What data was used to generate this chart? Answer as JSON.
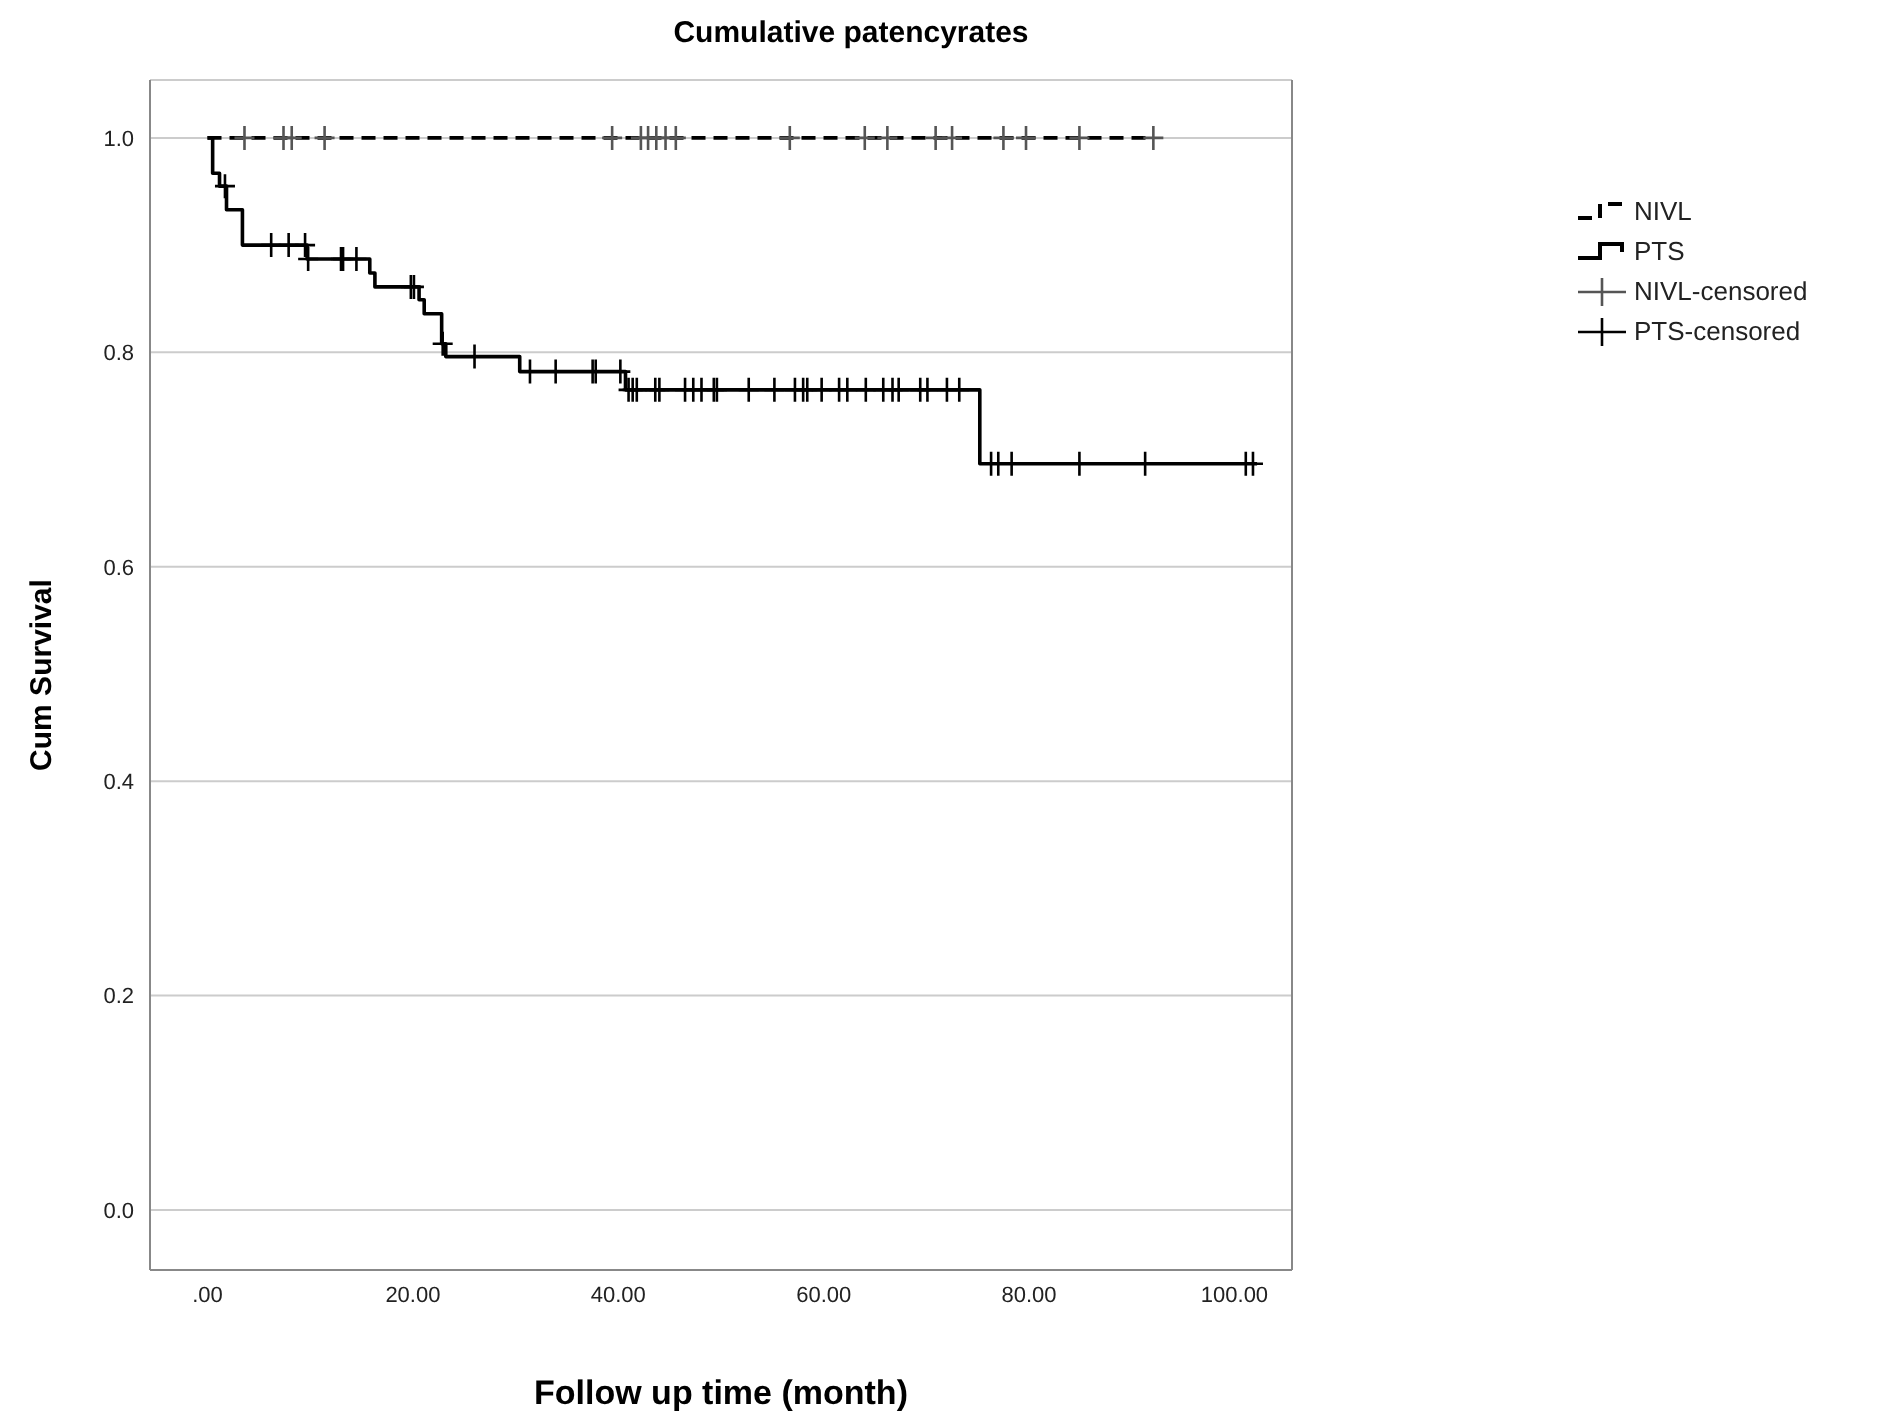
{
  "chart_data": {
    "type": "step",
    "title": "Cumulative patencyrates",
    "xlabel": "Follow up time (month)",
    "ylabel": "Cum Survival",
    "xlim": [
      -5.6,
      105.6
    ],
    "ylim": [
      -0.056,
      1.054
    ],
    "xticks": [
      {
        "value": 0,
        "label": ".00"
      },
      {
        "value": 20,
        "label": "20.00"
      },
      {
        "value": 40,
        "label": "40.00"
      },
      {
        "value": 60,
        "label": "60.00"
      },
      {
        "value": 80,
        "label": "80.00"
      },
      {
        "value": 100,
        "label": "100.00"
      }
    ],
    "yticks": [
      {
        "value": 0,
        "label": "0.0"
      },
      {
        "value": 0.2,
        "label": "0.2"
      },
      {
        "value": 0.4,
        "label": "0.4"
      },
      {
        "value": 0.6,
        "label": "0.6"
      },
      {
        "value": 0.8,
        "label": "0.8"
      },
      {
        "value": 1,
        "label": "1.0"
      }
    ],
    "grid": "y",
    "legend": "top right",
    "series": [
      {
        "name": "NIVL",
        "color": "#000000",
        "line_style": "dashed",
        "marker": "none",
        "x": [
          0,
          92.1
        ],
        "values": [
          1,
          1
        ]
      },
      {
        "name": "PTS",
        "color": "#000000",
        "line_style": "solid",
        "marker": "none",
        "x": [
          0,
          0.5,
          1.17,
          1.85,
          3.4,
          9.7,
          15.8,
          16.3,
          20.6,
          21.1,
          22.8,
          23.2,
          30.4,
          40.7,
          75.2,
          102.2
        ],
        "values": [
          1,
          0.967,
          0.955,
          0.933,
          0.9,
          0.887,
          0.874,
          0.861,
          0.849,
          0.836,
          0.808,
          0.796,
          0.782,
          0.765,
          0.696,
          0.696
        ]
      },
      {
        "name": "NIVL-censored",
        "type": "scatter",
        "color": "#555555",
        "marker": "cross",
        "x": [
          3.6,
          7.4,
          8.2,
          11.4,
          39.4,
          42.2,
          42.9,
          43.7,
          44.6,
          45.6,
          56.7,
          64.0,
          66.2,
          70.9,
          72.5,
          77.5,
          79.7,
          84.9,
          92.1
        ],
        "values": [
          1,
          1,
          1,
          1,
          1,
          1,
          1,
          1,
          1,
          1,
          1,
          1,
          1,
          1,
          1,
          1,
          1,
          1,
          1
        ]
      },
      {
        "name": "PTS-censored",
        "type": "scatter",
        "color": "#000000",
        "marker": "cross",
        "x": [
          1.7,
          6.2,
          7.9,
          9.5,
          9.8,
          13.0,
          13.2,
          14.5,
          19.8,
          20.1,
          22.9,
          26.0,
          31.4,
          33.9,
          37.5,
          37.8,
          40.2,
          41.0,
          41.4,
          41.8,
          43.6,
          44.0,
          46.5,
          47.3,
          48.1,
          49.3,
          49.6,
          52.7,
          55.2,
          57.2,
          58.0,
          58.4,
          59.8,
          61.5,
          62.3,
          64.1,
          65.8,
          66.7,
          67.3,
          69.4,
          70.1,
          72.0,
          73.2,
          76.3,
          77.0,
          78.3,
          84.9,
          91.3,
          101.1,
          101.8
        ],
        "values": [
          0.955,
          0.9,
          0.9,
          0.9,
          0.887,
          0.887,
          0.887,
          0.887,
          0.861,
          0.861,
          0.808,
          0.796,
          0.782,
          0.782,
          0.782,
          0.782,
          0.782,
          0.765,
          0.765,
          0.765,
          0.765,
          0.765,
          0.765,
          0.765,
          0.765,
          0.765,
          0.765,
          0.765,
          0.765,
          0.765,
          0.765,
          0.765,
          0.765,
          0.765,
          0.765,
          0.765,
          0.765,
          0.765,
          0.765,
          0.765,
          0.765,
          0.765,
          0.765,
          0.696,
          0.696,
          0.696,
          0.696,
          0.696,
          0.696,
          0.696
        ]
      }
    ]
  }
}
